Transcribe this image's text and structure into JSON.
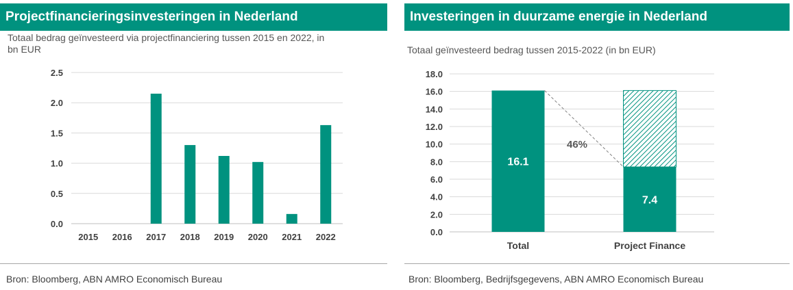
{
  "left": {
    "title": "Projectfinancieringsinvesteringen in Nederland",
    "subtitle_line1": "Totaal bedrag geïnvesteerd via projectfinanciering tussen 2015 en 2022, in",
    "subtitle_line2": "bn EUR",
    "source": "Bron: Bloomberg, ABN AMRO Economisch Bureau"
  },
  "right": {
    "title": "Investeringen in duurzame energie in Nederland",
    "subtitle": "Totaal geïnvesteerd bedrag tussen 2015-2022 (in bn EUR)",
    "source": "Bron: Bloomberg, Bedrijfsgegevens, ABN AMRO Economisch Bureau"
  },
  "colors": {
    "accent": "#00927f",
    "grid": "#d9d9d9",
    "axis": "#bfbfbf"
  },
  "chart_data": [
    {
      "type": "bar",
      "title": "Projectfinancieringsinvesteringen in Nederland",
      "categories": [
        "2015",
        "2016",
        "2017",
        "2018",
        "2019",
        "2020",
        "2021",
        "2022"
      ],
      "values": [
        0.0,
        0.0,
        2.15,
        1.3,
        1.12,
        1.02,
        0.16,
        1.63
      ],
      "ylim": [
        0,
        2.5
      ],
      "yticks": [
        "0.0",
        "0.5",
        "1.0",
        "1.5",
        "2.0",
        "2.5"
      ],
      "grid": true,
      "color": "#00927f"
    },
    {
      "type": "bar",
      "title": "Investeringen in duurzame energie in Nederland",
      "categories": [
        "Total",
        "Project Finance"
      ],
      "values": [
        16.1,
        7.4
      ],
      "remainder_value": 8.7,
      "data_labels": [
        "16.1",
        "7.4"
      ],
      "annotation": "46%",
      "ylim": [
        0,
        18
      ],
      "yticks": [
        "0.0",
        "2.0",
        "4.0",
        "6.0",
        "8.0",
        "10.0",
        "12.0",
        "14.0",
        "16.0",
        "18.0"
      ],
      "grid": true,
      "color": "#00927f"
    }
  ]
}
